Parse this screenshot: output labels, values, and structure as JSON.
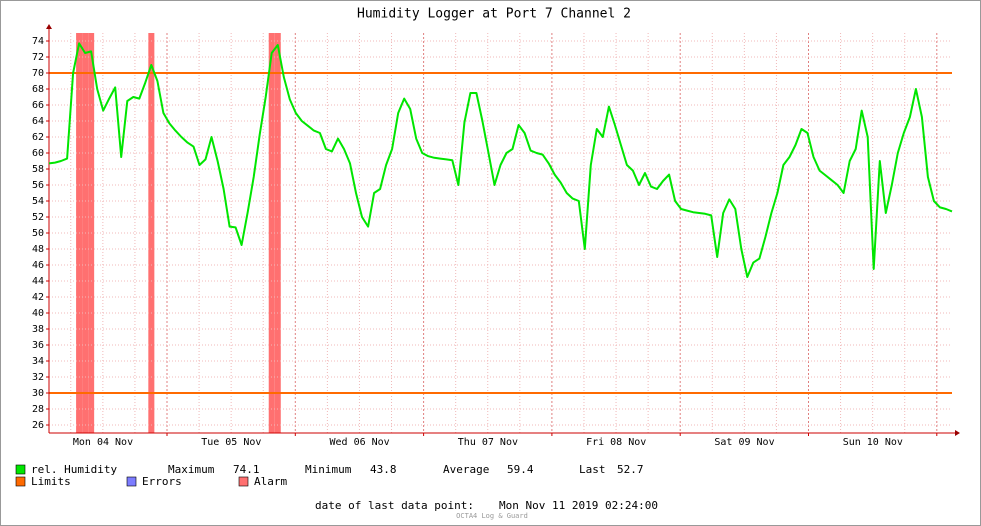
{
  "chart_data": {
    "type": "line",
    "title": "Humidity Logger at Port 7 Channel 2",
    "x_labels": [
      "Mon 04 Nov",
      "Tue 05 Nov",
      "Wed 06 Nov",
      "Thu 07 Nov",
      "Fri 08 Nov",
      "Sat 09 Nov",
      "Sun 10 Nov"
    ],
    "series": [
      {
        "name": "rel. Humidity",
        "color": "#00e600",
        "values": [
          58.7,
          58.8,
          59,
          59.3,
          70,
          73.7,
          72.5,
          72.7,
          68,
          65.3,
          66.8,
          68.2,
          59.5,
          66.5,
          67,
          66.8,
          68.8,
          71,
          69,
          65,
          63.7,
          62.8,
          62,
          61.3,
          60.8,
          58.5,
          59.2,
          62,
          59,
          55.5,
          50.8,
          50.7,
          48.5,
          52.6,
          57,
          62.3,
          67,
          72.5,
          73.5,
          69.5,
          66.7,
          65,
          64,
          63.4,
          62.8,
          62.5,
          60.5,
          60.2,
          61.8,
          60.5,
          58.7,
          55,
          52,
          50.8,
          55,
          55.5,
          58.5,
          60.5,
          65,
          66.8,
          65.5,
          61.8,
          60,
          59.6,
          59.4,
          59.3,
          59.2,
          59.1,
          56,
          63.8,
          67.5,
          67.5,
          64,
          60,
          56,
          58.5,
          60,
          60.5,
          63.5,
          62.5,
          60.3,
          60,
          59.8,
          58.7,
          57.3,
          56.3,
          55,
          54.3,
          54,
          48,
          58.5,
          63,
          62,
          65.8,
          63.5,
          61,
          58.5,
          57.8,
          56,
          57.5,
          55.8,
          55.5,
          56.5,
          57.3,
          54,
          53,
          52.8,
          52.6,
          52.5,
          52.4,
          52.2,
          47,
          52.5,
          54.2,
          53,
          48,
          44.5,
          46.3,
          46.8,
          49.5,
          52.5,
          55,
          58.5,
          59.5,
          61,
          63,
          62.5,
          59.5,
          57.8,
          57.2,
          56.6,
          56,
          55,
          59,
          60.5,
          65.3,
          62,
          45.5,
          59,
          52.5,
          56,
          60,
          62.5,
          64.5,
          68,
          64.5,
          57,
          54,
          53.2,
          53,
          52.7
        ]
      }
    ],
    "ylim": [
      25,
      75
    ],
    "yticks": [
      26,
      28,
      30,
      32,
      34,
      36,
      38,
      40,
      42,
      44,
      46,
      48,
      50,
      52,
      54,
      56,
      58,
      60,
      62,
      64,
      66,
      68,
      70,
      72,
      74
    ],
    "grid": true,
    "limits": {
      "name": "Limits",
      "color": "#ff6a00",
      "values": [
        30,
        70
      ]
    },
    "errors": {
      "name": "Errors",
      "color": "#7c7cff"
    },
    "alarm": {
      "name": "Alarm",
      "color": "#ff7070"
    },
    "stats": [
      {
        "label": "Maximum",
        "value": 74.1
      },
      {
        "label": "Minimum",
        "value": 43.8
      },
      {
        "label": "Average",
        "value": 59.4
      },
      {
        "label": "Last",
        "value": 52.7
      }
    ],
    "footer": {
      "label": "date of last data point:",
      "value": "Mon Nov 11 2019 02:24:00"
    },
    "watermark": "OCTA4 Log & Guard"
  }
}
